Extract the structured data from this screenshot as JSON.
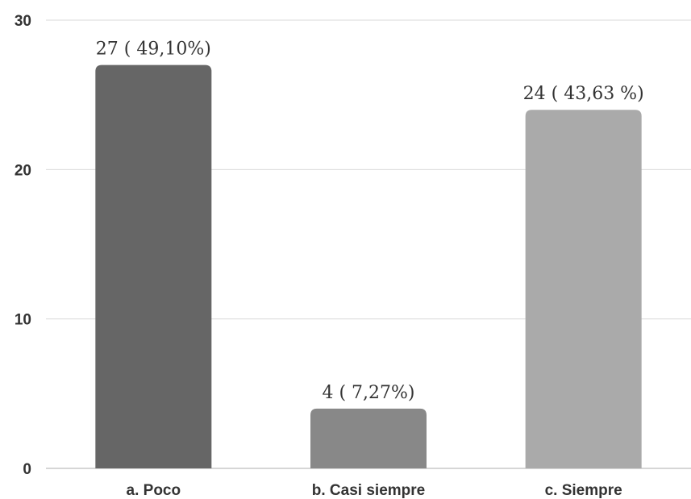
{
  "chart_data": {
    "type": "bar",
    "title": "",
    "xlabel": "",
    "ylabel": "",
    "categories": [
      "a. Poco",
      "b. Casi siempre",
      "c. Siempre"
    ],
    "values": [
      27,
      4,
      24
    ],
    "data_labels": [
      "27 ( 49,10%)",
      "4 ( 7,27%)",
      "24 ( 43,63 %)"
    ],
    "bar_colors": [
      "#666666",
      "#888888",
      "#aaaaaa"
    ],
    "ylim": [
      0,
      30
    ],
    "yticks": [
      0,
      10,
      20,
      30
    ],
    "grid": true,
    "legend": "none"
  }
}
